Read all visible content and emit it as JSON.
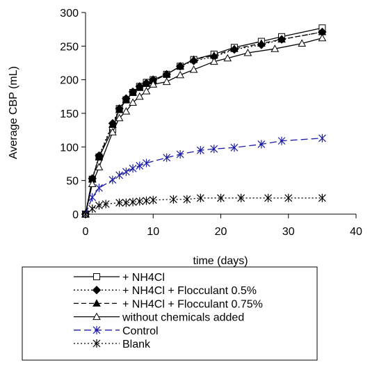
{
  "chart_data": {
    "type": "line",
    "title": "",
    "xlabel": "time (days)",
    "ylabel": "Average CBP (mL)",
    "xlim": [
      0,
      40
    ],
    "ylim": [
      0,
      300
    ],
    "xticks": [
      0,
      10,
      20,
      30,
      40
    ],
    "yticks": [
      0,
      50,
      100,
      150,
      200,
      250,
      300
    ],
    "grid": false,
    "legend_position": "bottom",
    "series": [
      {
        "name": "+ NH4Cl",
        "marker": "open-square",
        "dash": "solid",
        "color": "#000000",
        "x": [
          0,
          1,
          2,
          4,
          5,
          6,
          7,
          8,
          9,
          10,
          12,
          14,
          16,
          19,
          22,
          26,
          29,
          35
        ],
        "y": [
          0,
          52,
          85,
          126,
          157,
          170,
          181,
          190,
          196,
          200,
          208,
          220,
          230,
          238,
          248,
          257,
          264,
          277
        ]
      },
      {
        "name": "+ NH4Cl + Flocculant 0.5%",
        "marker": "filled-diamond",
        "dash": "dotted",
        "color": "#000000",
        "x": [
          0,
          1,
          2,
          4,
          5,
          6,
          7,
          8,
          9,
          10,
          12,
          14,
          16,
          19,
          22,
          26,
          29,
          35
        ],
        "y": [
          0,
          53,
          87,
          135,
          157,
          172,
          182,
          190,
          195,
          200,
          208,
          220,
          228,
          234,
          245,
          252,
          260,
          271
        ]
      },
      {
        "name": "+ NH4Cl + Flocculant 0.75%",
        "marker": "filled-triangle",
        "dash": "dashed",
        "color": "#000000",
        "x": [
          0,
          1,
          2,
          4,
          5,
          6,
          7,
          8,
          9,
          10,
          12,
          14,
          16,
          19,
          22,
          26,
          29,
          35
        ],
        "y": [
          0,
          52,
          85,
          133,
          155,
          170,
          181,
          188,
          194,
          198,
          208,
          220,
          230,
          236,
          246,
          254,
          260,
          271
        ]
      },
      {
        "name": "without chemicals added",
        "marker": "open-triangle",
        "dash": "solid",
        "color": "#000000",
        "x": [
          0,
          1,
          2,
          4,
          5,
          6,
          7,
          8,
          9,
          10,
          12,
          14,
          16,
          19,
          21,
          24,
          28,
          32,
          35
        ],
        "y": [
          0,
          45,
          70,
          122,
          143,
          153,
          166,
          175,
          183,
          193,
          197,
          207,
          215,
          227,
          232,
          240,
          246,
          254,
          262
        ]
      },
      {
        "name": "Control",
        "marker": "asterisk",
        "dash": "long-dash",
        "color": "#1a1aa6",
        "x": [
          0,
          1,
          2,
          4,
          5,
          6,
          7,
          8,
          9,
          12,
          14,
          17,
          19,
          22,
          26,
          29,
          35
        ],
        "y": [
          0,
          25,
          39,
          51,
          58,
          63,
          68,
          72,
          76,
          84,
          89,
          95,
          97,
          99,
          104,
          109,
          113
        ]
      },
      {
        "name": "Blank",
        "marker": "asterisk",
        "dash": "dotted",
        "color": "#000000",
        "x": [
          0,
          1,
          2,
          3,
          5,
          6,
          7,
          8,
          9,
          10,
          13,
          15,
          17,
          20,
          23,
          27,
          30,
          35
        ],
        "y": [
          0,
          8,
          13,
          15,
          17,
          17,
          18,
          19,
          20,
          21,
          22,
          22,
          24,
          24,
          24,
          24,
          24,
          24
        ]
      }
    ]
  }
}
